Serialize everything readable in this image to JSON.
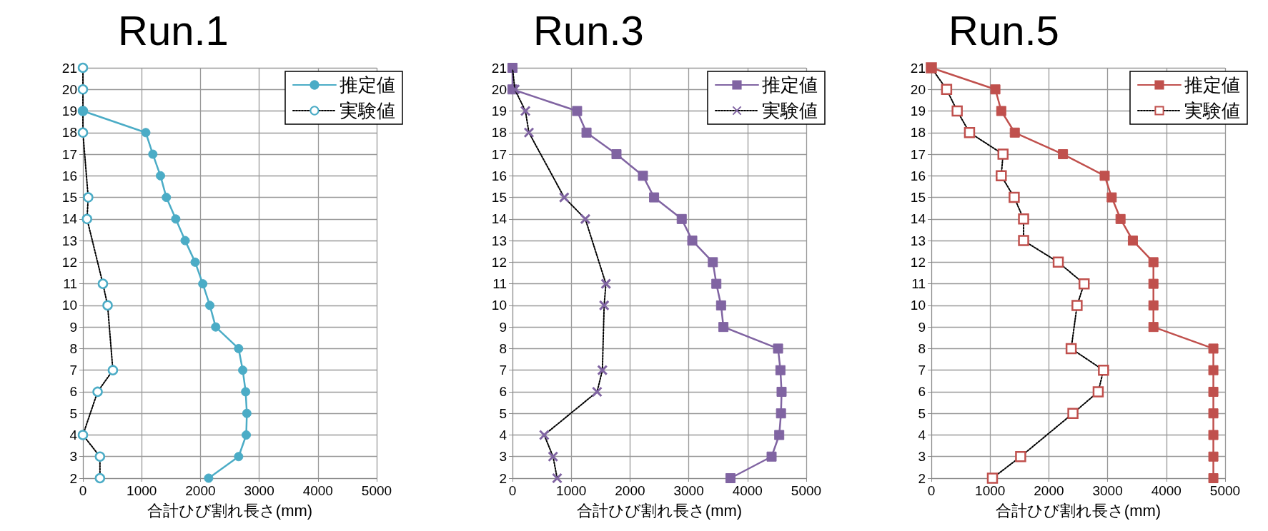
{
  "chart_data": [
    {
      "type": "line",
      "title": "Run.1",
      "xlabel": "合計ひび割れ長さ(mm)",
      "orientation": "horizontal",
      "categories": [
        "21",
        "20",
        "19",
        "18",
        "17",
        "16",
        "15",
        "14",
        "13",
        "12",
        "11",
        "10",
        "9",
        "8",
        "7",
        "6",
        "5",
        "4",
        "3",
        "2"
      ],
      "xlim": [
        0,
        5000
      ],
      "xticks": [
        0,
        1000,
        2000,
        3000,
        4000,
        5000
      ],
      "grid": true,
      "legend": "top right",
      "series": [
        {
          "name": "推定値",
          "color": "#4bacc6",
          "marker": "circle",
          "line_style": "solid",
          "values": [
            null,
            null,
            0,
            1070,
            1190,
            1320,
            1420,
            1580,
            1740,
            1910,
            2040,
            2160,
            2260,
            2650,
            2720,
            2770,
            2790,
            2780,
            2650,
            2140
          ]
        },
        {
          "name": "実験値",
          "color": "#4bacc6",
          "marker": "circle",
          "line_style": "dotted",
          "values": [
            0,
            0,
            0,
            0,
            null,
            null,
            90,
            70,
            null,
            null,
            340,
            420,
            null,
            null,
            510,
            250,
            null,
            0,
            290,
            290
          ]
        }
      ]
    },
    {
      "type": "line",
      "title": "Run.3",
      "xlabel": "合計ひび割れ長さ(mm)",
      "orientation": "horizontal",
      "categories": [
        "21",
        "20",
        "19",
        "18",
        "17",
        "16",
        "15",
        "14",
        "13",
        "12",
        "11",
        "10",
        "9",
        "8",
        "7",
        "6",
        "5",
        "4",
        "3",
        "2"
      ],
      "xlim": [
        0,
        5000
      ],
      "xticks": [
        0,
        1000,
        2000,
        3000,
        4000,
        5000
      ],
      "grid": true,
      "legend": "top right",
      "series": [
        {
          "name": "推定値",
          "color": "#8064a2",
          "marker": "square",
          "line_style": "solid",
          "values": [
            0,
            0,
            1100,
            1260,
            1770,
            2220,
            2410,
            2880,
            3060,
            3410,
            3470,
            3550,
            3590,
            4520,
            4560,
            4580,
            4570,
            4540,
            4410,
            3710
          ]
        },
        {
          "name": "実験値",
          "color": "#8064a2",
          "marker": "cross",
          "line_style": "dotted",
          "values": [
            0,
            40,
            220,
            280,
            null,
            null,
            880,
            1240,
            null,
            null,
            1590,
            1560,
            null,
            null,
            1530,
            1440,
            null,
            540,
            690,
            760
          ]
        }
      ]
    },
    {
      "type": "line",
      "title": "Run.5",
      "xlabel": "合計ひび割れ長さ(mm)",
      "orientation": "horizontal",
      "categories": [
        "21",
        "20",
        "19",
        "18",
        "17",
        "16",
        "15",
        "14",
        "13",
        "12",
        "11",
        "10",
        "9",
        "8",
        "7",
        "6",
        "5",
        "4",
        "3",
        "2"
      ],
      "xlim": [
        0,
        5000
      ],
      "xticks": [
        0,
        1000,
        2000,
        3000,
        4000,
        5000
      ],
      "grid": true,
      "legend": "top right",
      "series": [
        {
          "name": "推定値",
          "color": "#c0504d",
          "marker": "square",
          "line_style": "solid",
          "values": [
            0,
            1090,
            1190,
            1420,
            2240,
            2950,
            3070,
            3220,
            3430,
            3780,
            3780,
            3780,
            3780,
            4800,
            4800,
            4800,
            4800,
            4800,
            4800,
            4800
          ]
        },
        {
          "name": "実験値",
          "color": "#c0504d",
          "marker": "square",
          "line_style": "dotted",
          "values": [
            0,
            260,
            440,
            650,
            1220,
            1190,
            1410,
            1570,
            1570,
            2160,
            2600,
            2480,
            null,
            2380,
            2930,
            2840,
            2410,
            null,
            1520,
            1040
          ]
        }
      ]
    }
  ]
}
